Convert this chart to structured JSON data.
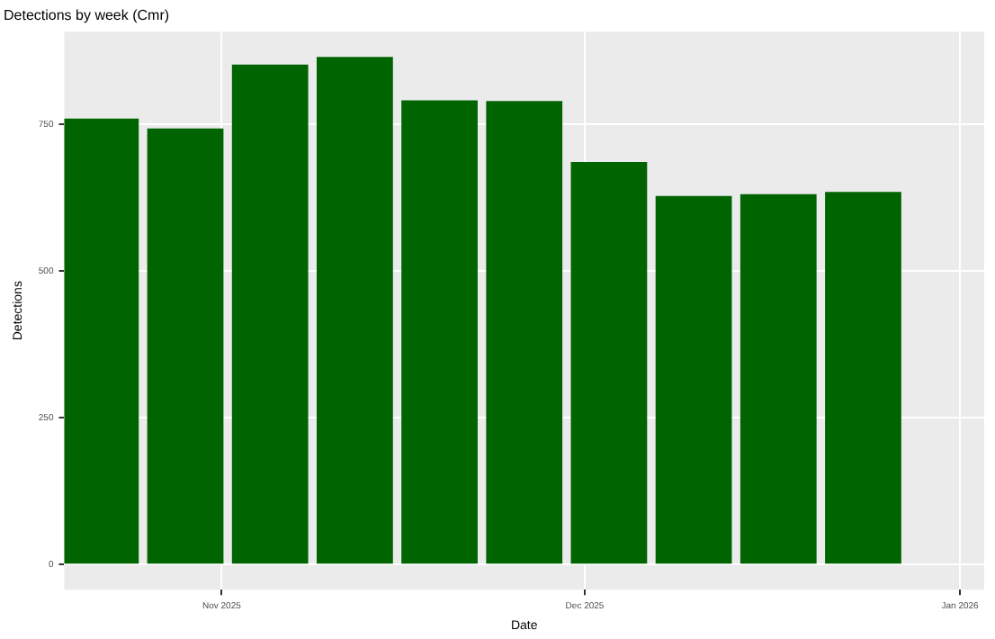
{
  "chart_data": {
    "type": "bar",
    "title": "Detections by week (Cmr)",
    "xlabel": "Date",
    "ylabel": "Detections",
    "x": [
      "2025-10-22",
      "2025-10-29",
      "2025-11-05",
      "2025-11-12",
      "2025-11-19",
      "2025-11-26",
      "2025-12-03",
      "2025-12-10",
      "2025-12-17",
      "2025-12-24"
    ],
    "values": [
      760,
      743,
      852,
      865,
      791,
      790,
      686,
      628,
      631,
      635
    ],
    "color": "#006400",
    "xlim": [
      "2025-10-19",
      "2026-01-03"
    ],
    "xticks": [
      {
        "value": "2025-11-01",
        "label": "Nov 2025"
      },
      {
        "value": "2025-12-01",
        "label": "Dec 2025"
      },
      {
        "value": "2026-01-01",
        "label": "Jan 2026"
      }
    ],
    "ylim": [
      -43,
      908
    ],
    "yticks": [
      0,
      250,
      500,
      750
    ],
    "grid": true,
    "legend": false
  }
}
